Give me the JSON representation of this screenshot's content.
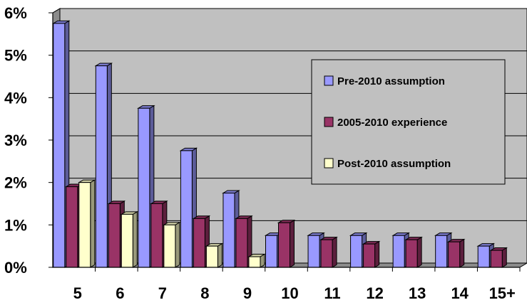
{
  "chart_data": {
    "type": "bar",
    "categories": [
      "5",
      "6",
      "7",
      "8",
      "9",
      "10",
      "11",
      "12",
      "13",
      "14",
      "15+"
    ],
    "series": [
      {
        "name": "Pre-2010 assumption",
        "color": "#9999ff",
        "values": [
          5.75,
          4.75,
          3.75,
          2.75,
          1.75,
          0.75,
          0.75,
          0.75,
          0.75,
          0.75,
          0.5
        ]
      },
      {
        "name": "2005-2010 experience",
        "color": "#993366",
        "values": [
          1.9,
          1.5,
          1.5,
          1.15,
          1.15,
          1.05,
          0.65,
          0.55,
          0.65,
          0.6,
          0.4
        ]
      },
      {
        "name": "Post-2010 assumption",
        "color": "#ffffcc",
        "values": [
          2.0,
          1.25,
          1.0,
          0.5,
          0.25,
          0,
          0,
          0,
          0,
          0,
          0
        ]
      }
    ],
    "y_ticks": [
      "0%",
      "1%",
      "2%",
      "3%",
      "4%",
      "5%",
      "6%"
    ],
    "ylim": [
      0,
      6
    ],
    "grid": true,
    "legend_position": "right",
    "plot_background": "#c0c0c0"
  }
}
